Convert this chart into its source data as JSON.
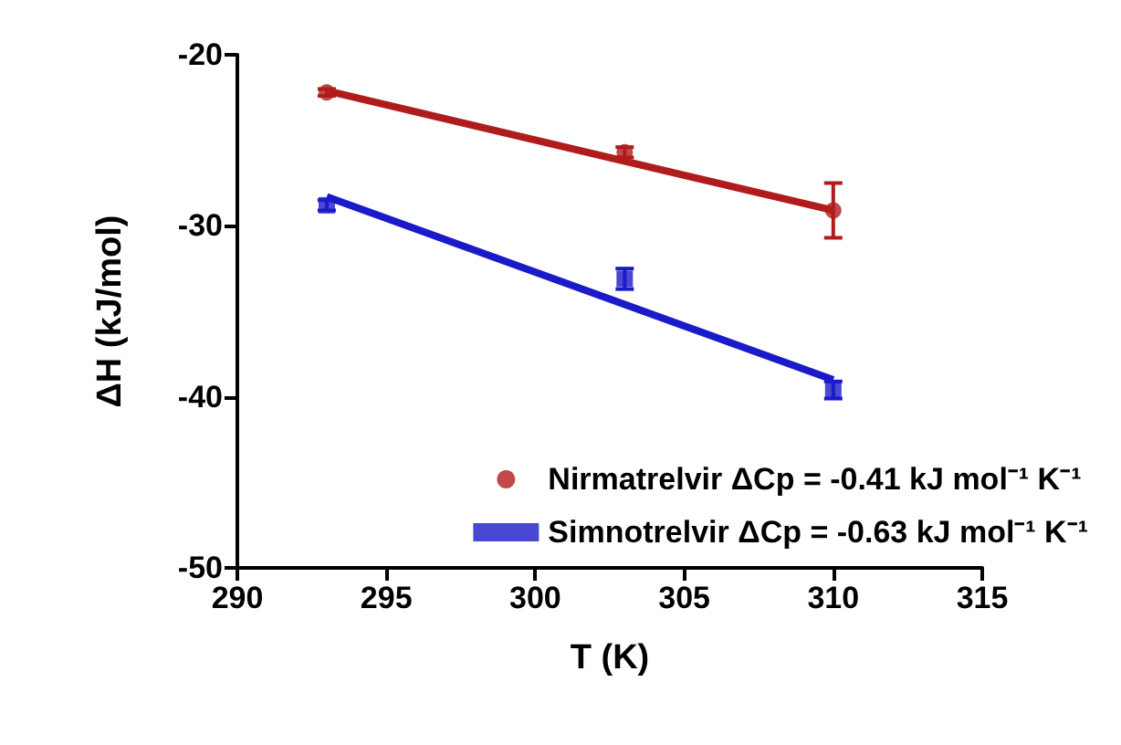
{
  "chart_data": {
    "type": "scatter",
    "xlabel": "T (K)",
    "ylabel": "ΔH (kJ/mol)",
    "xlim": [
      290,
      315
    ],
    "xticks": [
      290,
      295,
      300,
      305,
      310,
      315
    ],
    "ylim": [
      -50,
      -20
    ],
    "yticks": [
      -50,
      -40,
      -30,
      -20
    ],
    "grid": false,
    "legend": "bottom right",
    "series": [
      {
        "name": "Nirmatrelvir ΔCp = -0.41 kJ mol⁻¹ K⁻¹",
        "color": "#b01c1c",
        "marker": "circle",
        "x": [
          293,
          303,
          310
        ],
        "values": [
          -22.2,
          -25.7,
          -29.1
        ],
        "errors": [
          0.2,
          0.3,
          1.6
        ]
      },
      {
        "name": "Simnotrelvir ΔCp = -0.63 kJ mol⁻¹ K⁻¹",
        "color": "#1a1ac8",
        "marker": "square",
        "x": [
          293,
          303,
          310
        ],
        "values": [
          -28.8,
          -33.1,
          -39.6
        ],
        "errors": [
          0.3,
          0.6,
          0.5
        ]
      },
      {
        "type": "line",
        "color": "#b01c1c",
        "marker": "none",
        "x": [
          293,
          310
        ],
        "values": [
          -22.1,
          -29.1
        ]
      },
      {
        "type": "line",
        "color": "#1a1ac8",
        "marker": "none",
        "x": [
          293,
          310
        ],
        "values": [
          -28.3,
          -39.0
        ]
      }
    ]
  }
}
